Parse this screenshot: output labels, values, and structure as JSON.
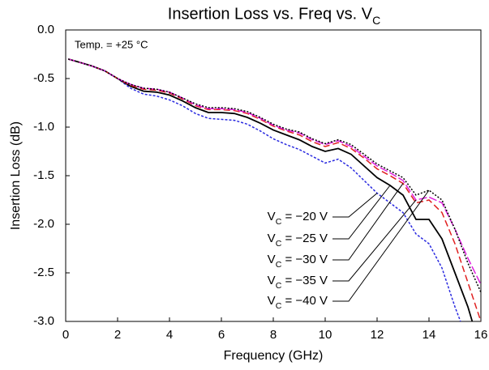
{
  "chart_data": {
    "type": "line",
    "title": "Insertion Loss vs. Freq vs. VC",
    "annotation": "Temp. = +25 °C",
    "x_label": "Frequency (GHz)",
    "y_label": "Insertion Loss (dB)",
    "x": [
      0.1,
      0.5,
      1,
      1.5,
      2,
      2.5,
      3,
      3.5,
      4,
      4.5,
      5,
      5.5,
      6,
      6.5,
      7,
      7.5,
      8,
      8.5,
      9,
      9.5,
      10,
      10.5,
      11,
      11.5,
      12,
      12.5,
      13,
      13.5,
      14,
      14.5,
      15,
      15.5,
      16
    ],
    "series": [
      {
        "name": "VC = −20 V",
        "color": "#2a2ae0",
        "dash": "3,2",
        "values": [
          -0.3,
          -0.33,
          -0.37,
          -0.42,
          -0.5,
          -0.6,
          -0.66,
          -0.68,
          -0.72,
          -0.78,
          -0.86,
          -0.91,
          -0.92,
          -0.93,
          -0.97,
          -1.04,
          -1.12,
          -1.18,
          -1.23,
          -1.3,
          -1.37,
          -1.33,
          -1.42,
          -1.55,
          -1.68,
          -1.78,
          -1.88,
          -2.1,
          -2.2,
          -2.45,
          -2.85,
          -3.2,
          null
        ]
      },
      {
        "name": "VC = −25 V",
        "color": "#000000",
        "dash": "none",
        "values": [
          -0.3,
          -0.33,
          -0.37,
          -0.42,
          -0.5,
          -0.58,
          -0.63,
          -0.64,
          -0.67,
          -0.73,
          -0.8,
          -0.85,
          -0.85,
          -0.86,
          -0.9,
          -0.96,
          -1.03,
          -1.08,
          -1.13,
          -1.2,
          -1.25,
          -1.22,
          -1.28,
          -1.4,
          -1.52,
          -1.6,
          -1.7,
          -1.95,
          -1.95,
          -2.15,
          -2.5,
          -2.85,
          -3.3
        ]
      },
      {
        "name": "VC = −30 V",
        "color": "#e02020",
        "dash": "8,4",
        "values": [
          -0.3,
          -0.33,
          -0.37,
          -0.42,
          -0.5,
          -0.57,
          -0.61,
          -0.62,
          -0.65,
          -0.71,
          -0.78,
          -0.82,
          -0.82,
          -0.83,
          -0.86,
          -0.92,
          -0.99,
          -1.04,
          -1.08,
          -1.15,
          -1.2,
          -1.16,
          -1.22,
          -1.32,
          -1.43,
          -1.5,
          -1.58,
          -1.78,
          -1.75,
          -1.88,
          -2.2,
          -2.6,
          -3.0
        ]
      },
      {
        "name": "VC = −35 V",
        "color": "#e020e0",
        "dash": "10,3",
        "values": [
          -0.3,
          -0.33,
          -0.37,
          -0.42,
          -0.5,
          -0.56,
          -0.6,
          -0.61,
          -0.64,
          -0.7,
          -0.77,
          -0.81,
          -0.81,
          -0.82,
          -0.85,
          -0.91,
          -0.98,
          -1.03,
          -1.06,
          -1.13,
          -1.18,
          -1.14,
          -1.2,
          -1.3,
          -1.4,
          -1.47,
          -1.55,
          -1.75,
          -1.72,
          -1.78,
          -2.05,
          -2.35,
          -2.62
        ]
      },
      {
        "name": "VC = −40 V",
        "color": "#000000",
        "dash": "2,2",
        "values": [
          -0.3,
          -0.33,
          -0.37,
          -0.42,
          -0.5,
          -0.56,
          -0.6,
          -0.61,
          -0.64,
          -0.7,
          -0.76,
          -0.8,
          -0.8,
          -0.81,
          -0.84,
          -0.9,
          -0.97,
          -1.02,
          -1.05,
          -1.12,
          -1.17,
          -1.13,
          -1.18,
          -1.28,
          -1.38,
          -1.45,
          -1.52,
          -1.7,
          -1.65,
          -1.75,
          -2.05,
          -2.4,
          -2.7
        ]
      }
    ],
    "xlim": [
      0,
      16
    ],
    "xticks": [
      0,
      2,
      4,
      6,
      8,
      10,
      12,
      14,
      16
    ],
    "ylim": [
      -3,
      0
    ],
    "yticks": [
      {
        "value": 0,
        "label": "0.0"
      },
      -0.5,
      {
        "value": -1,
        "label": "-1.0"
      },
      -1.5,
      {
        "value": -2,
        "label": "-2.0"
      },
      -2.5,
      {
        "value": -3,
        "label": "-3.0"
      }
    ],
    "grid": false
  }
}
